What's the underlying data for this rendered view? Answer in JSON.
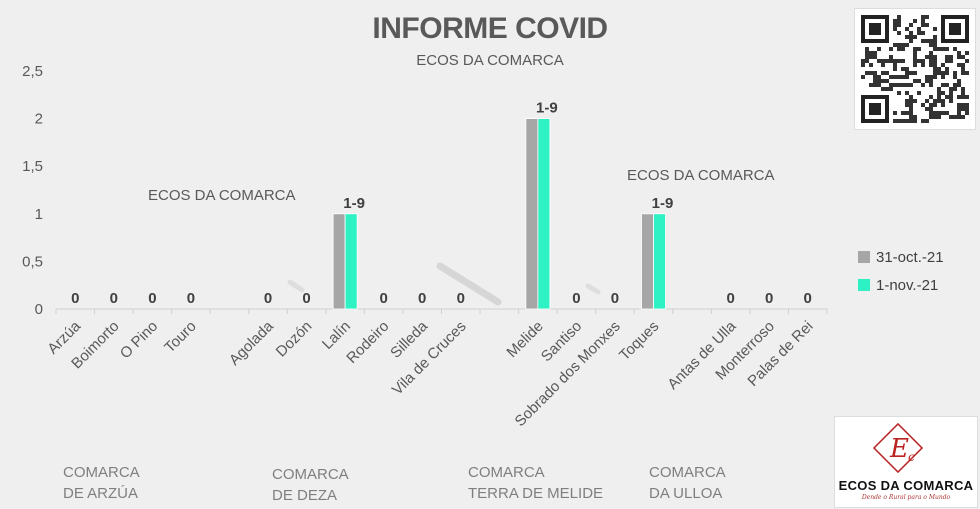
{
  "chart_data": {
    "type": "bar",
    "title": "INFORME COVID",
    "subtitle": "ECOS DA COMARCA",
    "categories": [
      "Arzúa",
      "Boimorto",
      "O Pino",
      "Touro",
      "Agolada",
      "Dozón",
      "Lalín",
      "Rodeiro",
      "Silleda",
      "Vila de Cruces",
      "Melide",
      "Santiso",
      "Sobrado dos Monxes",
      "Toques",
      "Antas de Ulla",
      "Monterroso",
      "Palas de Rei"
    ],
    "series": [
      {
        "name": "31-oct.-21",
        "color": "#a6a6a6",
        "values": [
          0,
          0,
          0,
          0,
          0,
          0,
          1,
          0,
          0,
          0,
          2,
          0,
          0,
          1,
          0,
          0,
          0
        ]
      },
      {
        "name": "1-nov.-21",
        "color": "#2ef2c4",
        "values": [
          0,
          0,
          0,
          0,
          0,
          0,
          1,
          0,
          0,
          0,
          2,
          0,
          0,
          1,
          0,
          0,
          0
        ]
      }
    ],
    "data_labels": [
      "0",
      "0",
      "0",
      "0",
      "0",
      "0",
      "1-9",
      "0",
      "0",
      "0",
      "1-9",
      "0",
      "0",
      "1-9",
      "0",
      "0",
      "0"
    ],
    "yticks": [
      "0",
      "0,5",
      "1",
      "1,5",
      "2",
      "2,5"
    ],
    "ylim": [
      0,
      2.5
    ],
    "grid": false,
    "legend_position": "right"
  },
  "watermarks": [
    "ECOS DA COMARCA",
    "ECOS DA COMARCA"
  ],
  "groups": [
    {
      "line1": "COMARCA",
      "line2": "DE ARZÚA"
    },
    {
      "line1": "COMARCA",
      "line2": "DE DEZA"
    },
    {
      "line1": "COMARCA",
      "line2": "TERRA DE MELIDE"
    },
    {
      "line1": "COMARCA",
      "line2": "DA ULLOA"
    }
  ],
  "logo": {
    "name": "ECOS DA COMARCA",
    "tagline": "Dende o Rural para o Mundo",
    "mark": "Ec"
  },
  "qr_icon": "qr-code-icon"
}
